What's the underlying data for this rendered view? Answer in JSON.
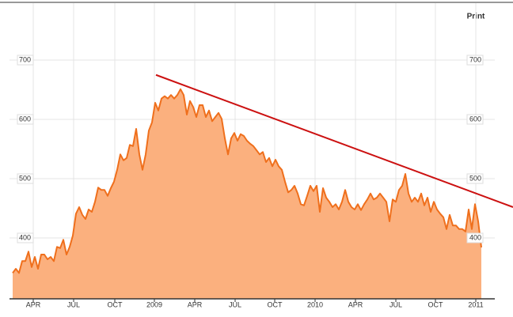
{
  "chart_data": {
    "type": "area",
    "print_label": "Print",
    "values": [
      341,
      348,
      341,
      361,
      361,
      377,
      351,
      368,
      348,
      372,
      372,
      364,
      368,
      361,
      385,
      383,
      397,
      372,
      385,
      404,
      441,
      452,
      439,
      432,
      448,
      444,
      461,
      485,
      481,
      481,
      471,
      484,
      495,
      515,
      541,
      531,
      535,
      557,
      555,
      584,
      541,
      515,
      541,
      581,
      595,
      628,
      615,
      635,
      639,
      635,
      641,
      635,
      641,
      651,
      641,
      608,
      631,
      621,
      604,
      624,
      624,
      604,
      615,
      597,
      604,
      611,
      601,
      568,
      541,
      568,
      577,
      564,
      575,
      572,
      564,
      559,
      555,
      548,
      541,
      545,
      528,
      535,
      521,
      532,
      521,
      515,
      495,
      477,
      481,
      488,
      475,
      457,
      455,
      471,
      488,
      479,
      488,
      444,
      484,
      468,
      461,
      452,
      457,
      448,
      461,
      481,
      461,
      452,
      448,
      457,
      447,
      457,
      465,
      475,
      465,
      468,
      475,
      468,
      461,
      428,
      465,
      461,
      481,
      488,
      508,
      475,
      461,
      468,
      461,
      475,
      455,
      468,
      444,
      461,
      448,
      441,
      435,
      415,
      439,
      421,
      421,
      415,
      415,
      411,
      448,
      415,
      457,
      428,
      384
    ],
    "color": "#fbb07e",
    "line_color": "#ef6f1c",
    "xlim": [
      -1,
      152.25
    ],
    "ylim": [
      300,
      800
    ],
    "yticks": [
      400,
      500,
      600,
      700
    ],
    "xticks": [
      {
        "value": 6.5,
        "label": "APR"
      },
      {
        "value": 19.25,
        "label": "JUL"
      },
      {
        "value": 32.25,
        "label": "OCT"
      },
      {
        "value": 44.75,
        "label": "2009"
      },
      {
        "value": 57.5,
        "label": "APR"
      },
      {
        "value": 70.25,
        "label": "JUL"
      },
      {
        "value": 82.75,
        "label": "OCT"
      },
      {
        "value": 95.5,
        "label": "2010"
      },
      {
        "value": 108.25,
        "label": "APR"
      },
      {
        "value": 121,
        "label": "JUL"
      },
      {
        "value": 133.5,
        "label": "OCT"
      },
      {
        "value": 146.25,
        "label": "2011"
      }
    ],
    "grid": true,
    "trend_line": {
      "x": [
        45.25,
        158
      ],
      "values": [
        675,
        452
      ],
      "color": "#cc1111"
    }
  }
}
